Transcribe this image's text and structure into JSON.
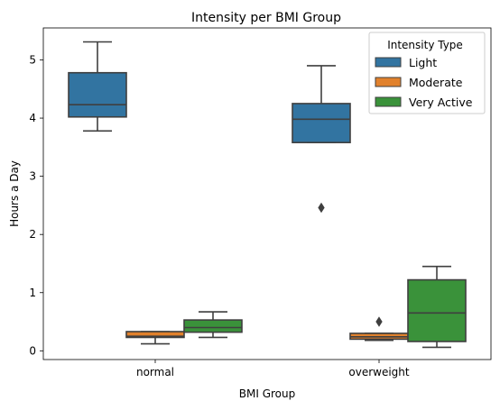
{
  "chart_data": {
    "type": "box",
    "title": "Intensity per BMI Group",
    "xlabel": "BMI Group",
    "ylabel": "Hours a Day",
    "categories": [
      "normal",
      "overweight"
    ],
    "yticks": [
      0,
      1,
      2,
      3,
      4,
      5
    ],
    "ylim": [
      -0.15,
      5.55
    ],
    "grid": false,
    "legend": {
      "title": "Intensity Type",
      "placement": "top-right"
    },
    "series": [
      {
        "name": "Light",
        "color": "#3274a1",
        "boxes": [
          {
            "category": "normal",
            "whisker_low": 3.78,
            "q1": 4.02,
            "median": 4.23,
            "q3": 4.78,
            "whisker_high": 5.31,
            "outliers": []
          },
          {
            "category": "overweight",
            "whisker_low": 3.58,
            "q1": 3.58,
            "median": 3.98,
            "q3": 4.25,
            "whisker_high": 4.9,
            "outliers": [
              2.46
            ]
          }
        ]
      },
      {
        "name": "Moderate",
        "color": "#e1812c",
        "boxes": [
          {
            "category": "normal",
            "whisker_low": 0.12,
            "q1": 0.23,
            "median": 0.25,
            "q3": 0.33,
            "whisker_high": 0.33,
            "outliers": []
          },
          {
            "category": "overweight",
            "whisker_low": 0.18,
            "q1": 0.2,
            "median": 0.24,
            "q3": 0.3,
            "whisker_high": 0.3,
            "outliers": [
              0.5
            ]
          }
        ]
      },
      {
        "name": "Very Active",
        "color": "#3a923a",
        "boxes": [
          {
            "category": "normal",
            "whisker_low": 0.23,
            "q1": 0.32,
            "median": 0.4,
            "q3": 0.53,
            "whisker_high": 0.67,
            "outliers": []
          },
          {
            "category": "overweight",
            "whisker_low": 0.06,
            "q1": 0.16,
            "median": 0.65,
            "q3": 1.22,
            "whisker_high": 1.45,
            "outliers": []
          }
        ]
      }
    ]
  }
}
